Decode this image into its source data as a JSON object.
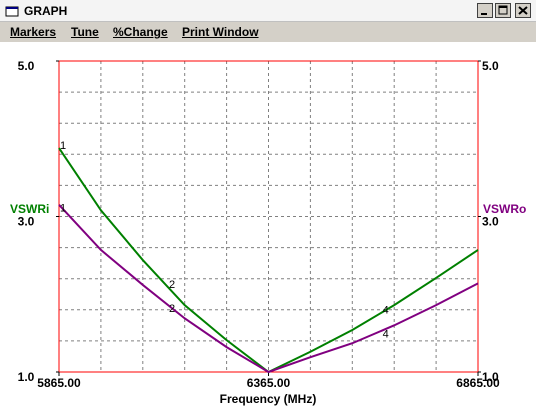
{
  "window": {
    "title": "GRAPH",
    "menu": [
      "Markers",
      "Tune",
      "%Change",
      "Print Window"
    ]
  },
  "chart_data": {
    "type": "line",
    "x_label": "Frequency (MHz)",
    "x": [
      5865,
      5965,
      6065,
      6165,
      6265,
      6365,
      6465,
      6565,
      6665,
      6765,
      6865
    ],
    "series": [
      {
        "name": "VSWRi",
        "color": "#008000",
        "axis": "y",
        "values": [
          3.88,
          3.08,
          2.44,
          1.86,
          1.41,
          1.0,
          1.26,
          1.54,
          1.86,
          2.21,
          2.57
        ]
      },
      {
        "name": "VSWRo",
        "color": "#800080",
        "axis": "y2",
        "values": [
          3.15,
          2.57,
          2.12,
          1.69,
          1.32,
          1.0,
          1.19,
          1.37,
          1.6,
          1.86,
          2.14
        ]
      }
    ],
    "markers": [
      {
        "label": "1",
        "x": 5865
      },
      {
        "label": "2",
        "x": 6125
      },
      {
        "label": "4",
        "x": 6635
      }
    ],
    "xlim": [
      5865,
      6865
    ],
    "xticks": [
      {
        "value": 5865,
        "label": "5865.00"
      },
      {
        "value": 6365,
        "label": "6365.00"
      },
      {
        "value": 6865,
        "label": "6865.00"
      }
    ],
    "ylim": [
      1,
      5
    ],
    "yticks": [
      {
        "value": 1,
        "label": "1.0"
      },
      {
        "value": 3,
        "label": "3.0"
      },
      {
        "value": 5,
        "label": "5.0"
      }
    ],
    "y2lim": [
      1,
      5
    ],
    "y2ticks": [
      {
        "value": 1,
        "label": "1.0"
      },
      {
        "value": 3,
        "label": "3.0"
      },
      {
        "value": 5,
        "label": "5.0"
      }
    ],
    "xgrid": [
      5965,
      6065,
      6165,
      6265,
      6365,
      6465,
      6565,
      6665,
      6765
    ],
    "ygrid": [
      1.4,
      1.8,
      2.2,
      2.6,
      3.0,
      3.4,
      3.8,
      4.2,
      4.6
    ],
    "grid": true,
    "frame_color": "#ff0000"
  }
}
